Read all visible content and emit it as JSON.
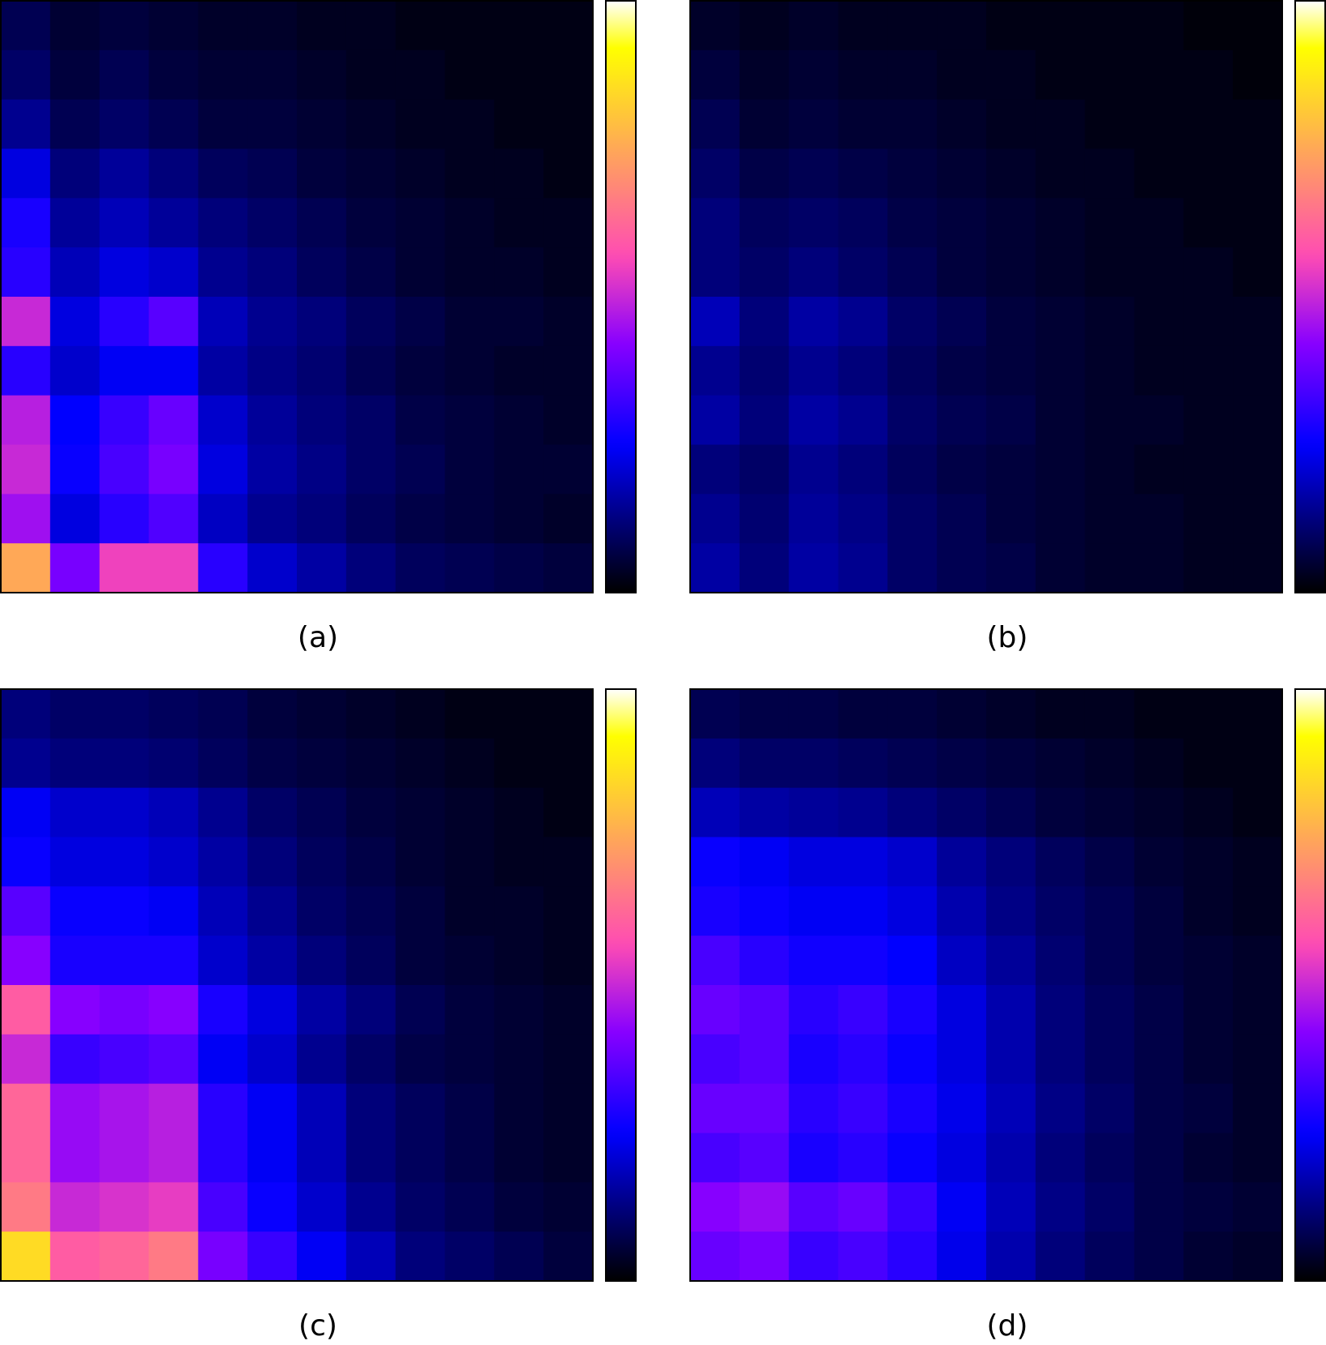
{
  "chart_data": [
    {
      "type": "heatmap",
      "label": "(a)",
      "colormap": "gnuplot2",
      "zlim": [
        0,
        1
      ],
      "values": [
        [
          0.08,
          0.05,
          0.06,
          0.05,
          0.04,
          0.04,
          0.03,
          0.03,
          0.02,
          0.02,
          0.02,
          0.02
        ],
        [
          0.1,
          0.06,
          0.08,
          0.06,
          0.05,
          0.05,
          0.04,
          0.03,
          0.03,
          0.02,
          0.02,
          0.02
        ],
        [
          0.14,
          0.08,
          0.1,
          0.08,
          0.06,
          0.06,
          0.05,
          0.04,
          0.03,
          0.03,
          0.02,
          0.02
        ],
        [
          0.22,
          0.12,
          0.15,
          0.12,
          0.09,
          0.08,
          0.06,
          0.05,
          0.04,
          0.03,
          0.03,
          0.02
        ],
        [
          0.28,
          0.15,
          0.18,
          0.15,
          0.12,
          0.1,
          0.08,
          0.06,
          0.05,
          0.04,
          0.03,
          0.03
        ],
        [
          0.3,
          0.18,
          0.22,
          0.2,
          0.14,
          0.12,
          0.09,
          0.07,
          0.05,
          0.04,
          0.04,
          0.03
        ],
        [
          0.5,
          0.22,
          0.3,
          0.36,
          0.18,
          0.14,
          0.12,
          0.09,
          0.07,
          0.05,
          0.05,
          0.04
        ],
        [
          0.3,
          0.2,
          0.24,
          0.24,
          0.16,
          0.13,
          0.11,
          0.08,
          0.06,
          0.05,
          0.04,
          0.04
        ],
        [
          0.48,
          0.25,
          0.32,
          0.38,
          0.2,
          0.15,
          0.12,
          0.1,
          0.07,
          0.06,
          0.05,
          0.04
        ],
        [
          0.5,
          0.26,
          0.34,
          0.4,
          0.22,
          0.16,
          0.13,
          0.1,
          0.08,
          0.06,
          0.05,
          0.05
        ],
        [
          0.45,
          0.22,
          0.3,
          0.35,
          0.19,
          0.14,
          0.12,
          0.09,
          0.07,
          0.06,
          0.05,
          0.04
        ],
        [
          0.75,
          0.4,
          0.55,
          0.55,
          0.3,
          0.2,
          0.16,
          0.12,
          0.09,
          0.08,
          0.07,
          0.06
        ]
      ]
    },
    {
      "type": "heatmap",
      "label": "(b)",
      "colormap": "gnuplot2",
      "zlim": [
        0,
        1
      ],
      "values": [
        [
          0.04,
          0.03,
          0.04,
          0.03,
          0.03,
          0.03,
          0.02,
          0.02,
          0.02,
          0.02,
          0.01,
          0.01
        ],
        [
          0.06,
          0.04,
          0.05,
          0.04,
          0.04,
          0.03,
          0.03,
          0.02,
          0.02,
          0.02,
          0.02,
          0.01
        ],
        [
          0.08,
          0.05,
          0.06,
          0.05,
          0.05,
          0.04,
          0.03,
          0.03,
          0.02,
          0.02,
          0.02,
          0.02
        ],
        [
          0.1,
          0.07,
          0.08,
          0.07,
          0.06,
          0.05,
          0.04,
          0.03,
          0.03,
          0.02,
          0.02,
          0.02
        ],
        [
          0.12,
          0.09,
          0.1,
          0.09,
          0.07,
          0.06,
          0.05,
          0.04,
          0.03,
          0.03,
          0.02,
          0.02
        ],
        [
          0.12,
          0.1,
          0.12,
          0.1,
          0.08,
          0.06,
          0.05,
          0.04,
          0.03,
          0.03,
          0.03,
          0.02
        ],
        [
          0.18,
          0.12,
          0.16,
          0.14,
          0.1,
          0.08,
          0.06,
          0.05,
          0.04,
          0.03,
          0.03,
          0.03
        ],
        [
          0.14,
          0.11,
          0.14,
          0.12,
          0.09,
          0.07,
          0.06,
          0.05,
          0.04,
          0.03,
          0.03,
          0.03
        ],
        [
          0.16,
          0.12,
          0.16,
          0.14,
          0.1,
          0.08,
          0.07,
          0.05,
          0.04,
          0.04,
          0.03,
          0.03
        ],
        [
          0.12,
          0.1,
          0.14,
          0.12,
          0.09,
          0.07,
          0.06,
          0.05,
          0.04,
          0.03,
          0.03,
          0.03
        ],
        [
          0.14,
          0.11,
          0.15,
          0.13,
          0.1,
          0.08,
          0.06,
          0.05,
          0.04,
          0.04,
          0.03,
          0.03
        ],
        [
          0.16,
          0.12,
          0.16,
          0.14,
          0.1,
          0.08,
          0.07,
          0.05,
          0.04,
          0.04,
          0.03,
          0.03
        ]
      ]
    },
    {
      "type": "heatmap",
      "label": "(c)",
      "colormap": "gnuplot2",
      "zlim": [
        0,
        1
      ],
      "values": [
        [
          0.12,
          0.1,
          0.1,
          0.09,
          0.08,
          0.06,
          0.05,
          0.04,
          0.03,
          0.02,
          0.02,
          0.02
        ],
        [
          0.14,
          0.12,
          0.12,
          0.11,
          0.09,
          0.07,
          0.06,
          0.05,
          0.04,
          0.03,
          0.02,
          0.02
        ],
        [
          0.24,
          0.2,
          0.2,
          0.18,
          0.14,
          0.1,
          0.08,
          0.06,
          0.05,
          0.04,
          0.03,
          0.02
        ],
        [
          0.26,
          0.22,
          0.22,
          0.2,
          0.16,
          0.12,
          0.09,
          0.07,
          0.05,
          0.04,
          0.03,
          0.03
        ],
        [
          0.36,
          0.26,
          0.26,
          0.24,
          0.18,
          0.14,
          0.1,
          0.08,
          0.06,
          0.04,
          0.04,
          0.03
        ],
        [
          0.42,
          0.28,
          0.28,
          0.28,
          0.2,
          0.16,
          0.12,
          0.09,
          0.06,
          0.05,
          0.04,
          0.03
        ],
        [
          0.6,
          0.42,
          0.4,
          0.42,
          0.28,
          0.22,
          0.16,
          0.12,
          0.08,
          0.06,
          0.05,
          0.04
        ],
        [
          0.5,
          0.32,
          0.34,
          0.36,
          0.24,
          0.2,
          0.14,
          0.1,
          0.07,
          0.06,
          0.05,
          0.04
        ],
        [
          0.62,
          0.44,
          0.46,
          0.48,
          0.3,
          0.24,
          0.18,
          0.12,
          0.09,
          0.07,
          0.05,
          0.04
        ],
        [
          0.62,
          0.44,
          0.46,
          0.48,
          0.3,
          0.24,
          0.18,
          0.12,
          0.09,
          0.07,
          0.05,
          0.04
        ],
        [
          0.66,
          0.5,
          0.52,
          0.54,
          0.34,
          0.26,
          0.2,
          0.14,
          0.1,
          0.08,
          0.06,
          0.05
        ],
        [
          0.85,
          0.6,
          0.62,
          0.66,
          0.4,
          0.32,
          0.24,
          0.18,
          0.12,
          0.1,
          0.08,
          0.06
        ]
      ]
    },
    {
      "type": "heatmap",
      "label": "(d)",
      "colormap": "gnuplot2",
      "zlim": [
        0,
        1
      ],
      "values": [
        [
          0.08,
          0.07,
          0.07,
          0.06,
          0.06,
          0.05,
          0.04,
          0.03,
          0.03,
          0.02,
          0.02,
          0.02
        ],
        [
          0.12,
          0.1,
          0.1,
          0.09,
          0.08,
          0.07,
          0.06,
          0.05,
          0.04,
          0.03,
          0.02,
          0.02
        ],
        [
          0.18,
          0.16,
          0.15,
          0.14,
          0.12,
          0.1,
          0.08,
          0.06,
          0.05,
          0.04,
          0.03,
          0.02
        ],
        [
          0.26,
          0.24,
          0.22,
          0.22,
          0.2,
          0.15,
          0.12,
          0.09,
          0.07,
          0.05,
          0.04,
          0.03
        ],
        [
          0.28,
          0.26,
          0.24,
          0.24,
          0.22,
          0.17,
          0.13,
          0.1,
          0.08,
          0.06,
          0.04,
          0.03
        ],
        [
          0.34,
          0.3,
          0.27,
          0.27,
          0.25,
          0.19,
          0.15,
          0.11,
          0.08,
          0.06,
          0.05,
          0.04
        ],
        [
          0.38,
          0.36,
          0.3,
          0.32,
          0.28,
          0.22,
          0.17,
          0.12,
          0.09,
          0.07,
          0.05,
          0.04
        ],
        [
          0.34,
          0.36,
          0.28,
          0.3,
          0.26,
          0.22,
          0.17,
          0.12,
          0.09,
          0.07,
          0.05,
          0.04
        ],
        [
          0.38,
          0.38,
          0.3,
          0.32,
          0.28,
          0.23,
          0.18,
          0.13,
          0.1,
          0.07,
          0.06,
          0.04
        ],
        [
          0.34,
          0.36,
          0.28,
          0.3,
          0.26,
          0.22,
          0.17,
          0.12,
          0.09,
          0.07,
          0.05,
          0.04
        ],
        [
          0.42,
          0.44,
          0.36,
          0.38,
          0.32,
          0.24,
          0.18,
          0.13,
          0.1,
          0.07,
          0.06,
          0.05
        ],
        [
          0.38,
          0.4,
          0.32,
          0.34,
          0.3,
          0.23,
          0.17,
          0.12,
          0.09,
          0.07,
          0.05,
          0.04
        ]
      ]
    }
  ]
}
